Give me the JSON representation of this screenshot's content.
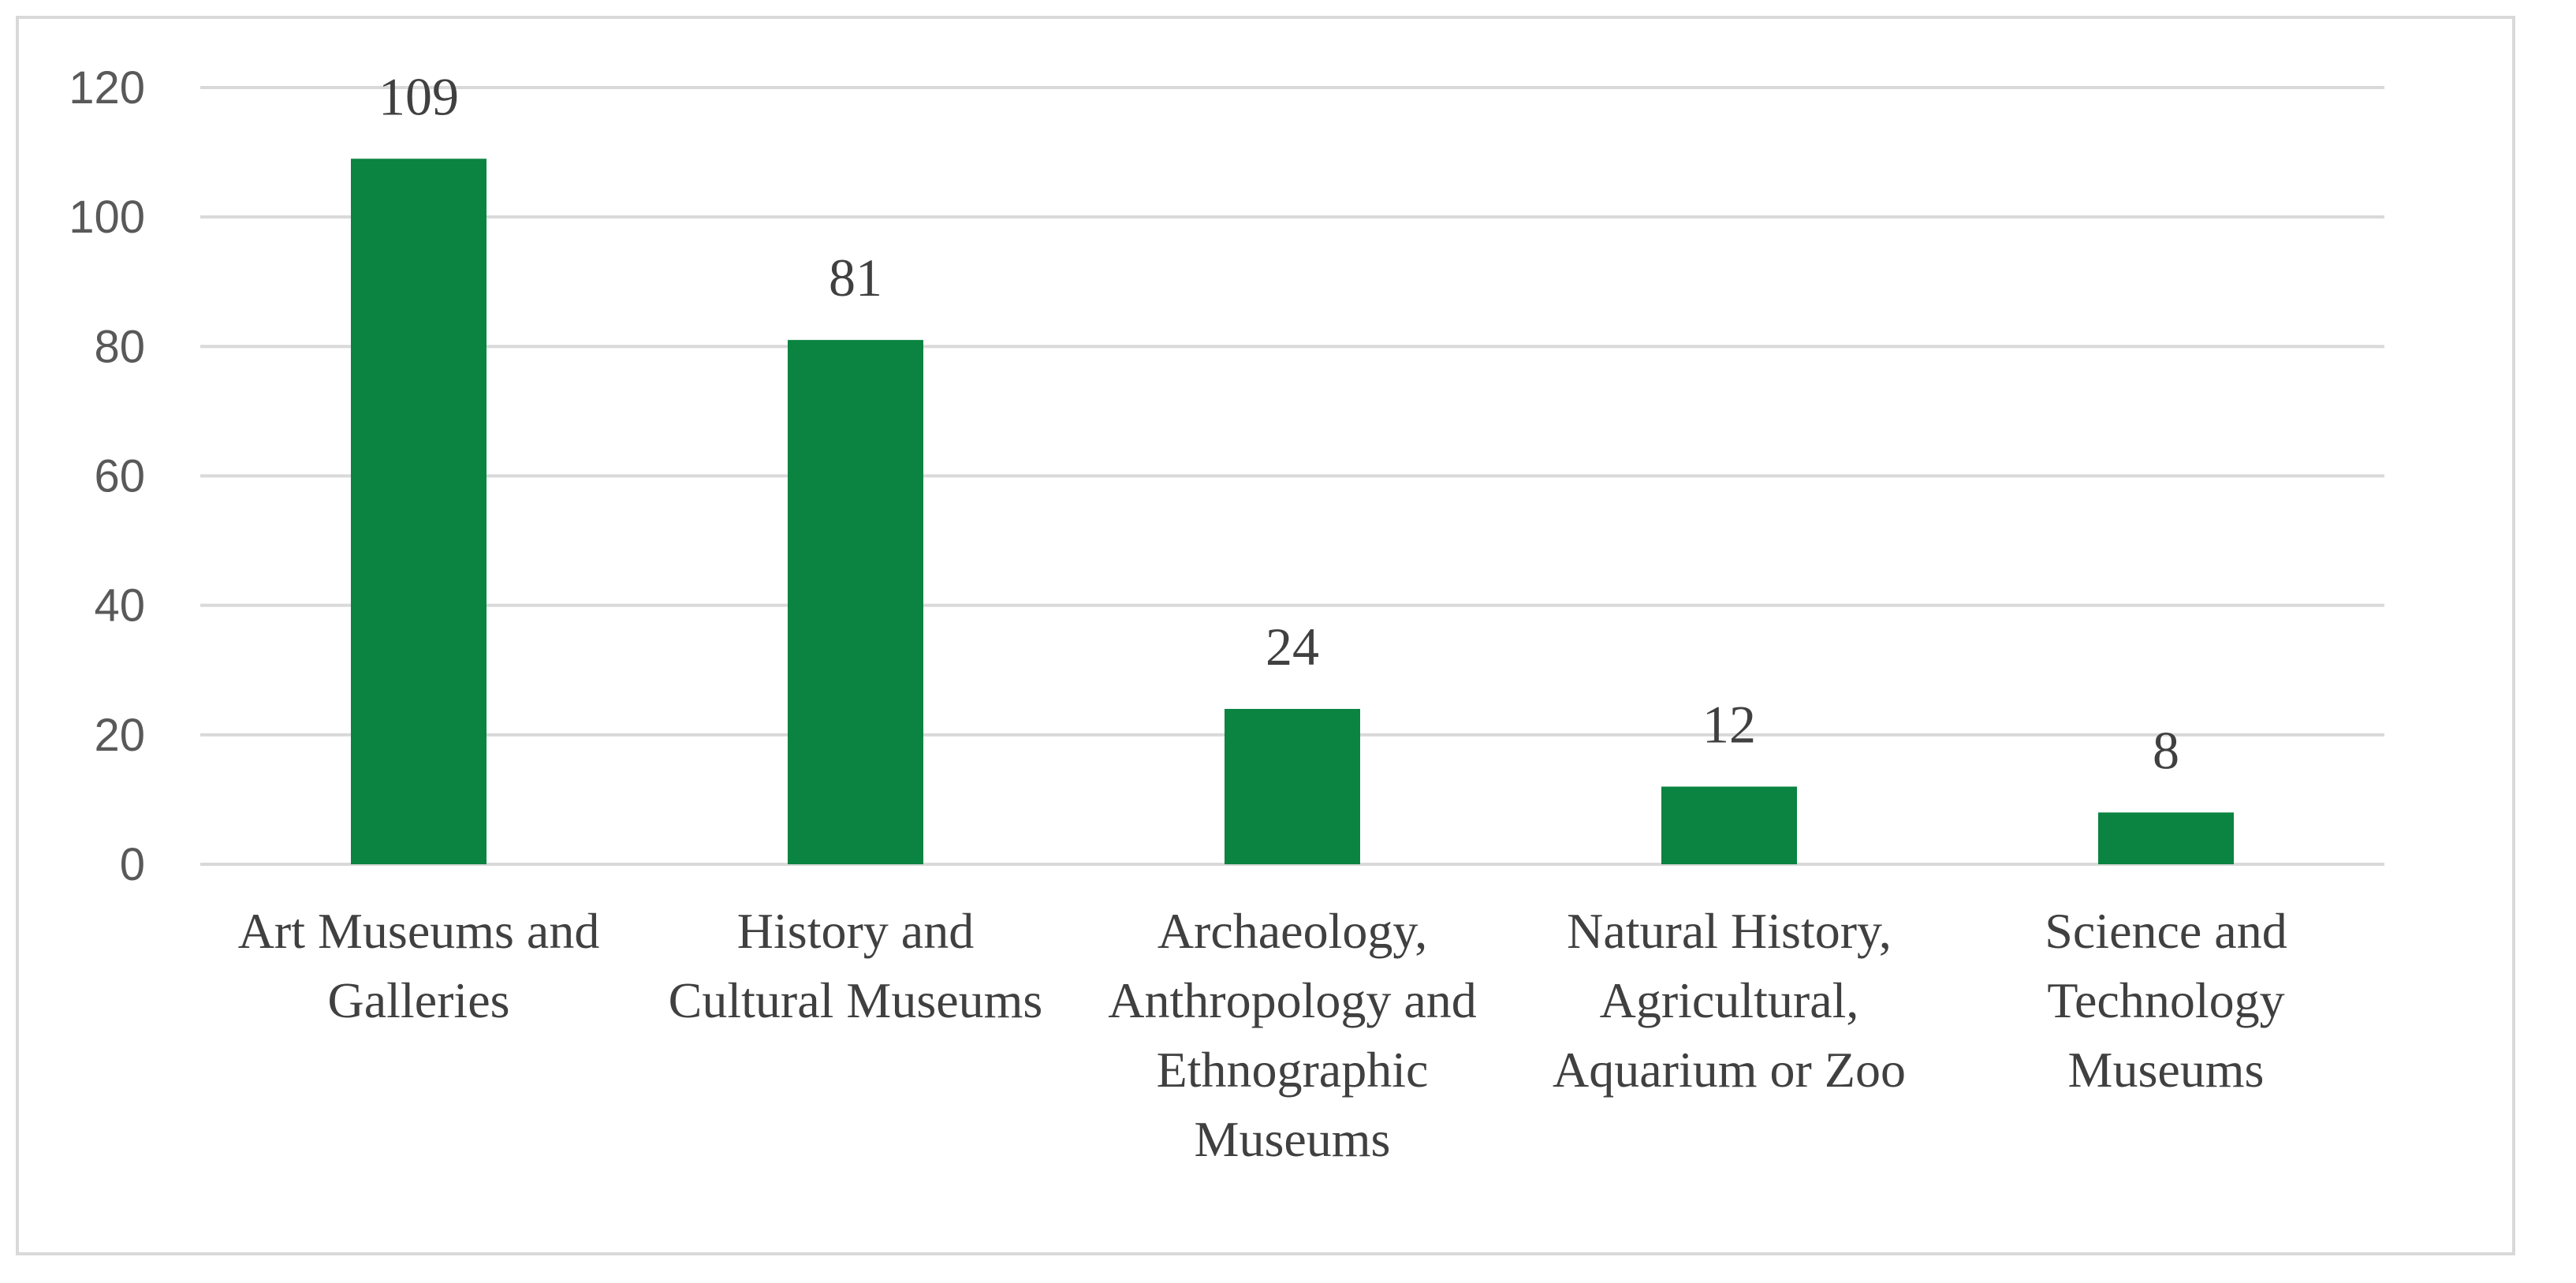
{
  "chart_data": {
    "type": "bar",
    "title": "",
    "xlabel": "",
    "ylabel": "",
    "ylim": [
      0,
      120
    ],
    "yticks": [
      "0",
      "20",
      "40",
      "60",
      "80",
      "100",
      "120"
    ],
    "grid": true,
    "legend": "none",
    "bar_color": "#0a8440",
    "categories": [
      [
        "Art Museums and",
        "Galleries"
      ],
      [
        "History and",
        "Cultural Museums"
      ],
      [
        "Archaeology,",
        "Anthropology and",
        "Ethnographic",
        "Museums"
      ],
      [
        "Natural History,",
        "Agricultural,",
        "Aquarium or Zoo"
      ],
      [
        "Science and",
        "Technology",
        "Museums"
      ]
    ],
    "values": [
      109,
      81,
      24,
      12,
      8
    ],
    "data_labels": [
      "109",
      "81",
      "24",
      "12",
      "8"
    ]
  }
}
